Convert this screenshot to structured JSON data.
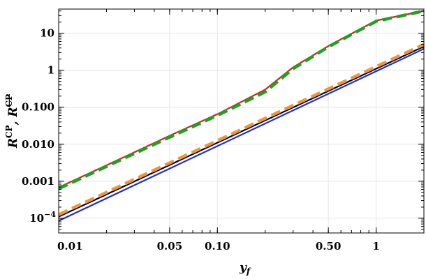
{
  "chart_data": {
    "type": "line",
    "title": "",
    "xlabel_main": "y",
    "xlabel_sub": "f",
    "ylabel_r": "R",
    "ylabel_cp": "CP",
    "ylabel_sep": ", ",
    "ylabel_cp_struck": "CP",
    "x_scale": "log",
    "y_scale": "log",
    "xlim": [
      0.01,
      2.0
    ],
    "ylim": [
      4e-05,
      45
    ],
    "grid": true,
    "legend": "none",
    "x_ticks": [
      {
        "value": 0.01,
        "label": "0.01"
      },
      {
        "value": 0.05,
        "label": "0.05"
      },
      {
        "value": 0.1,
        "label": "0.10"
      },
      {
        "value": 0.5,
        "label": "0.50"
      },
      {
        "value": 1,
        "label": "1"
      }
    ],
    "y_ticks": [
      {
        "value": 0.0001,
        "label_base": "10",
        "label_exp": "−4"
      },
      {
        "value": 0.001,
        "label": "0.001"
      },
      {
        "value": 0.01,
        "label": "0.010"
      },
      {
        "value": 0.1,
        "label": "0.100"
      },
      {
        "value": 1,
        "label": "1"
      },
      {
        "value": 10,
        "label": "10"
      }
    ],
    "series": [
      {
        "color": "#dd1c1c",
        "dashed": false,
        "width": 2.2,
        "x": [
          0.01,
          0.02,
          0.05,
          0.1,
          0.2,
          0.3,
          0.5,
          1.0,
          2.0
        ],
        "y": [
          0.00068,
          0.0027,
          0.017,
          0.065,
          0.3,
          1.2,
          4.5,
          22,
          40
        ]
      },
      {
        "color": "#22a022",
        "dashed": true,
        "width": 4.5,
        "x": [
          0.01,
          0.02,
          0.05,
          0.1,
          0.2,
          0.3,
          0.5,
          1.0,
          2.0
        ],
        "y": [
          0.00063,
          0.0025,
          0.0155,
          0.06,
          0.26,
          1.1,
          4.3,
          21,
          40
        ]
      },
      {
        "color": "#000000",
        "dashed": false,
        "width": 2.2,
        "x": [
          0.01,
          2.0
        ],
        "y": [
          0.00011,
          4.4
        ]
      },
      {
        "color": "#f0953a",
        "dashed": true,
        "width": 4.5,
        "x": [
          0.01,
          2.0
        ],
        "y": [
          0.000125,
          5.0
        ]
      },
      {
        "color": "#1c2ee0",
        "dashed": false,
        "width": 2.2,
        "x": [
          0.01,
          2.0
        ],
        "y": [
          8.5e-05,
          3.8
        ]
      }
    ]
  }
}
